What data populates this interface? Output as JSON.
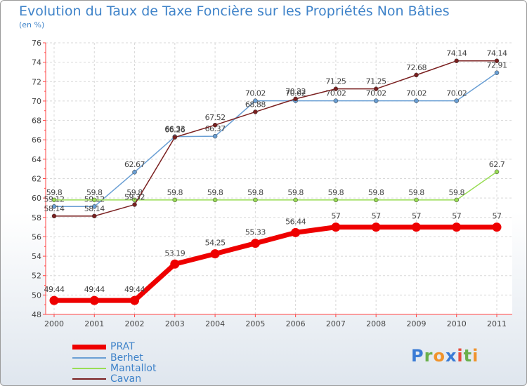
{
  "title": "Evolution du Taux de Taxe Foncière sur les Propriétés Non Bâties",
  "unit_label": "(en %)",
  "chart_data": {
    "type": "line",
    "title": "Evolution du Taux de Taxe Foncière sur les Propriétés Non Bâties",
    "ylabel": "(en %)",
    "xlabel": "",
    "ylim": [
      48,
      76
    ],
    "yticks": [
      48,
      50,
      52,
      54,
      56,
      58,
      60,
      62,
      64,
      66,
      68,
      70,
      72,
      74,
      76
    ],
    "categories": [
      "2000",
      "2001",
      "2002",
      "2003",
      "2004",
      "2005",
      "2006",
      "2007",
      "2008",
      "2009",
      "2010",
      "2011"
    ],
    "grid": true,
    "series": [
      {
        "name": "Berhet",
        "color": "#6a9fd4",
        "values": [
          59.12,
          59.12,
          62.67,
          66.33,
          66.37,
          70.02,
          70.02,
          70.02,
          70.02,
          70.02,
          70.02,
          72.91
        ],
        "labels": [
          "59.12",
          "59.12",
          "62.67",
          "66.33",
          "66.37",
          "70.02",
          "70.02",
          "70.02",
          "70.02",
          "70.02",
          "70.02",
          "72.91"
        ]
      },
      {
        "name": "Mantallot",
        "color": "#99dd55",
        "values": [
          59.8,
          59.8,
          59.8,
          59.8,
          59.8,
          59.8,
          59.8,
          59.8,
          59.8,
          59.8,
          59.8,
          62.7
        ],
        "labels": [
          "59.8",
          "59.8",
          "59.8",
          "59.8",
          "59.8",
          "59.8",
          "59.8",
          "59.8",
          "59.8",
          "59.8",
          "59.8",
          "62.7"
        ]
      },
      {
        "name": "Cavan",
        "color": "#7a2020",
        "values": [
          58.14,
          58.14,
          59.32,
          66.26,
          67.52,
          68.88,
          70.22,
          71.25,
          71.25,
          72.68,
          74.14,
          74.14
        ],
        "labels": [
          "58.14",
          "58.14",
          "59.32",
          "66.26",
          "67.52",
          "68.88",
          "70.22",
          "71.25",
          "71.25",
          "72.68",
          "74.14",
          "74.14"
        ]
      },
      {
        "name": "PRAT",
        "color": "#ee0000",
        "values": [
          49.44,
          49.44,
          49.44,
          53.19,
          54.25,
          55.33,
          56.44,
          57,
          57,
          57,
          57,
          57
        ],
        "labels": [
          "49.44",
          "49.44",
          "49.44",
          "53.19",
          "54.25",
          "55.33",
          "56.44",
          "57",
          "57",
          "57",
          "57",
          "57"
        ]
      }
    ],
    "legend": [
      "PRAT",
      "Berhet",
      "Mantallot",
      "Cavan"
    ],
    "legend_position": "bottom-left"
  },
  "legend": [
    {
      "name": "PRAT",
      "color": "#ee0000"
    },
    {
      "name": "Berhet",
      "color": "#6a9fd4"
    },
    {
      "name": "Mantallot",
      "color": "#99dd55"
    },
    {
      "name": "Cavan",
      "color": "#7a2020"
    }
  ],
  "logo": {
    "letters": [
      "P",
      "r",
      "o",
      "x",
      "i",
      "t",
      "i"
    ],
    "colors": [
      "#3a7bd5",
      "#6ab04c",
      "#f0932b",
      "#3a7bd5",
      "#e74c3c",
      "#6ab04c",
      "#f0932b"
    ]
  }
}
